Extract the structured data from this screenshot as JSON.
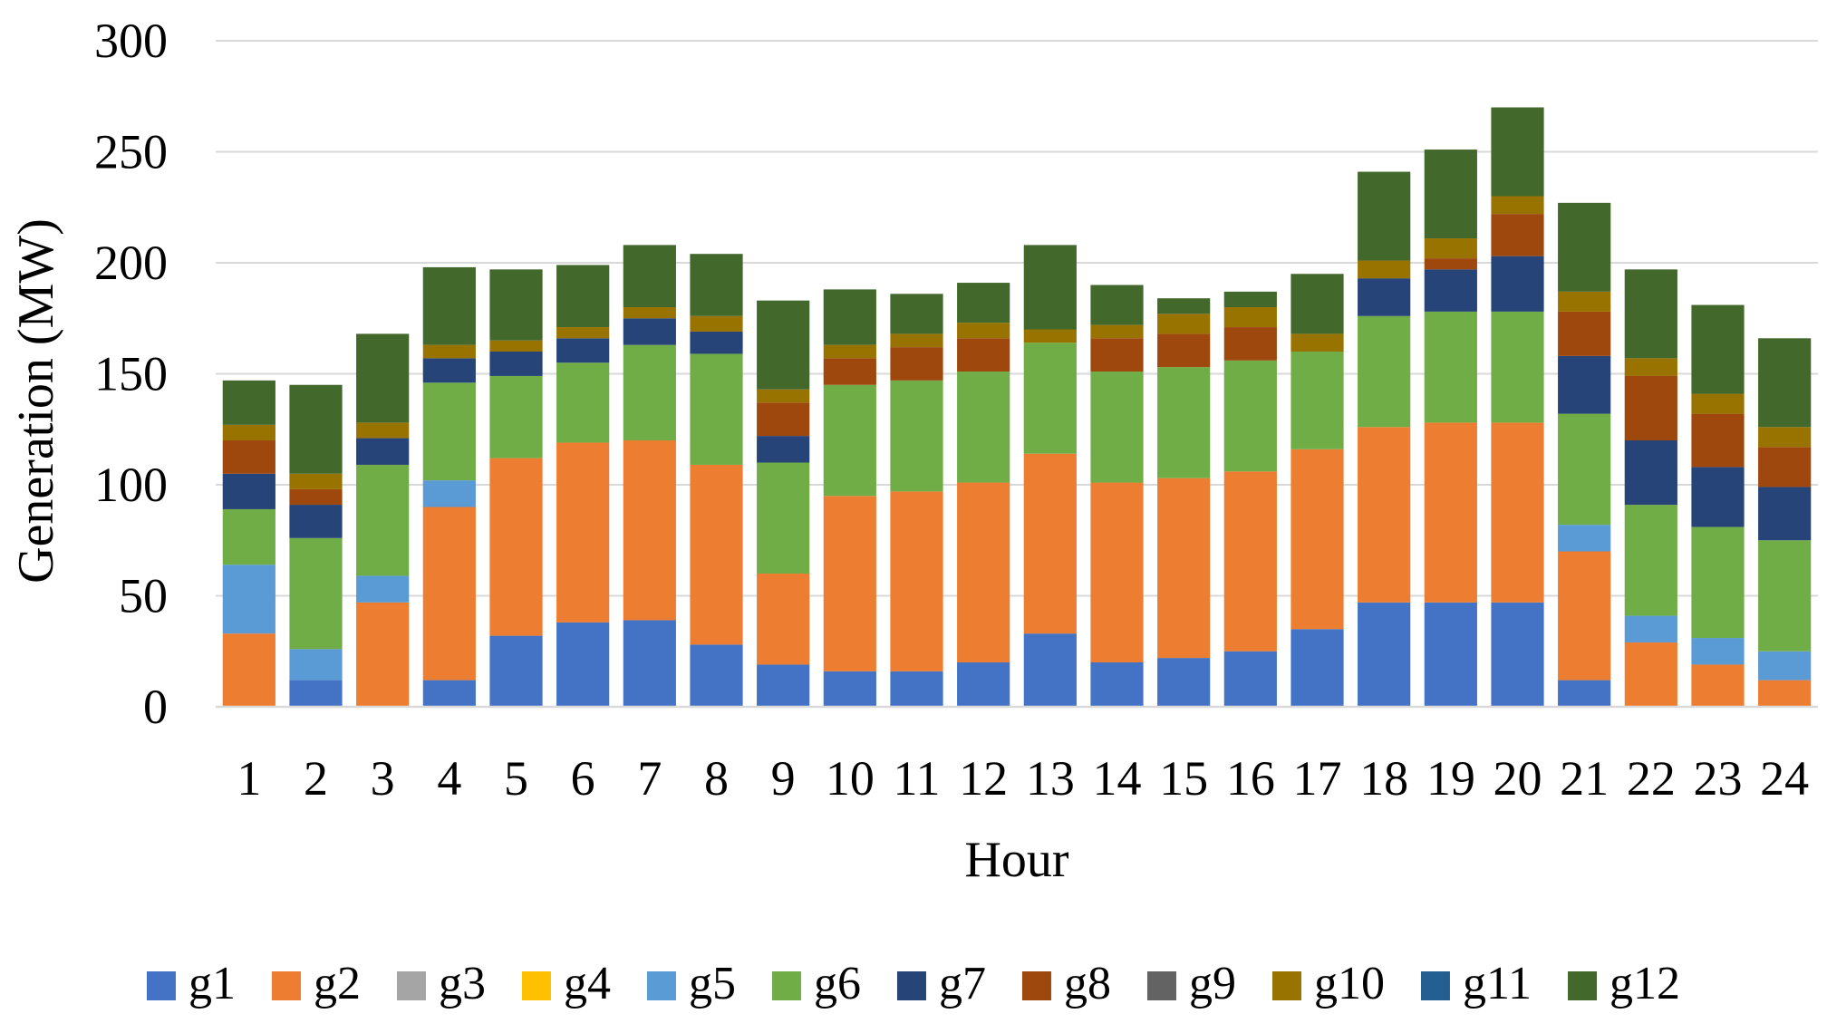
{
  "chart_data": {
    "type": "bar",
    "stacked": true,
    "title": "",
    "xlabel": "Hour",
    "ylabel": "Generation (MW)",
    "ylim": [
      0,
      300
    ],
    "yticks": [
      0,
      50,
      100,
      150,
      200,
      250,
      300
    ],
    "grid": true,
    "legend_position": "bottom",
    "categories": [
      "1",
      "2",
      "3",
      "4",
      "5",
      "6",
      "7",
      "8",
      "9",
      "10",
      "11",
      "12",
      "13",
      "14",
      "15",
      "16",
      "17",
      "18",
      "19",
      "20",
      "21",
      "22",
      "23",
      "24"
    ],
    "series": [
      {
        "name": "g1",
        "color": "#4472C4",
        "values": [
          0,
          12,
          0,
          12,
          32,
          38,
          39,
          28,
          19,
          16,
          16,
          20,
          33,
          20,
          22,
          25,
          35,
          47,
          47,
          47,
          12,
          0,
          0,
          0
        ]
      },
      {
        "name": "g2",
        "color": "#ED7D31",
        "values": [
          33,
          0,
          47,
          78,
          80,
          81,
          81,
          81,
          41,
          79,
          81,
          81,
          81,
          81,
          81,
          81,
          81,
          79,
          81,
          81,
          58,
          29,
          19,
          12
        ]
      },
      {
        "name": "g3",
        "color": "#A5A5A5",
        "values": [
          0,
          0,
          0,
          0,
          0,
          0,
          0,
          0,
          0,
          0,
          0,
          0,
          0,
          0,
          0,
          0,
          0,
          0,
          0,
          0,
          0,
          0,
          0,
          0
        ]
      },
      {
        "name": "g4",
        "color": "#FFC000",
        "values": [
          0,
          0,
          0,
          0,
          0,
          0,
          0,
          0,
          0,
          0,
          0,
          0,
          0,
          0,
          0,
          0,
          0,
          0,
          0,
          0,
          0,
          0,
          0,
          0
        ]
      },
      {
        "name": "g5",
        "color": "#5B9BD5",
        "values": [
          31,
          14,
          12,
          12,
          0,
          0,
          0,
          0,
          0,
          0,
          0,
          0,
          0,
          0,
          0,
          0,
          0,
          0,
          0,
          0,
          12,
          12,
          12,
          13
        ]
      },
      {
        "name": "g6",
        "color": "#70AD47",
        "values": [
          25,
          50,
          50,
          44,
          37,
          36,
          43,
          50,
          50,
          50,
          50,
          50,
          50,
          50,
          50,
          50,
          44,
          50,
          50,
          50,
          50,
          50,
          50,
          50
        ]
      },
      {
        "name": "g7",
        "color": "#264478",
        "values": [
          16,
          15,
          12,
          11,
          11,
          11,
          12,
          10,
          12,
          0,
          0,
          0,
          0,
          0,
          0,
          0,
          0,
          17,
          19,
          25,
          26,
          29,
          27,
          24
        ]
      },
      {
        "name": "g8",
        "color": "#9E480E",
        "values": [
          15,
          7,
          0,
          0,
          0,
          0,
          0,
          0,
          15,
          12,
          15,
          15,
          0,
          15,
          15,
          15,
          0,
          0,
          5,
          19,
          20,
          29,
          24,
          18
        ]
      },
      {
        "name": "g9",
        "color": "#636363",
        "values": [
          0,
          0,
          0,
          0,
          0,
          0,
          0,
          0,
          0,
          0,
          0,
          0,
          0,
          0,
          0,
          0,
          0,
          0,
          0,
          0,
          0,
          0,
          0,
          0
        ]
      },
      {
        "name": "g10",
        "color": "#997300",
        "values": [
          7,
          7,
          7,
          6,
          5,
          5,
          5,
          7,
          6,
          6,
          6,
          7,
          6,
          6,
          9,
          9,
          8,
          8,
          9,
          8,
          9,
          8,
          9,
          9
        ]
      },
      {
        "name": "g11",
        "color": "#255E91",
        "values": [
          0,
          0,
          0,
          0,
          0,
          0,
          0,
          0,
          0,
          0,
          0,
          0,
          0,
          0,
          0,
          0,
          0,
          0,
          0,
          0,
          0,
          0,
          0,
          0
        ]
      },
      {
        "name": "g12",
        "color": "#43682B",
        "values": [
          20,
          40,
          40,
          35,
          32,
          28,
          28,
          28,
          40,
          25,
          18,
          18,
          38,
          18,
          7,
          7,
          27,
          40,
          40,
          40,
          40,
          40,
          40,
          40
        ]
      }
    ]
  }
}
